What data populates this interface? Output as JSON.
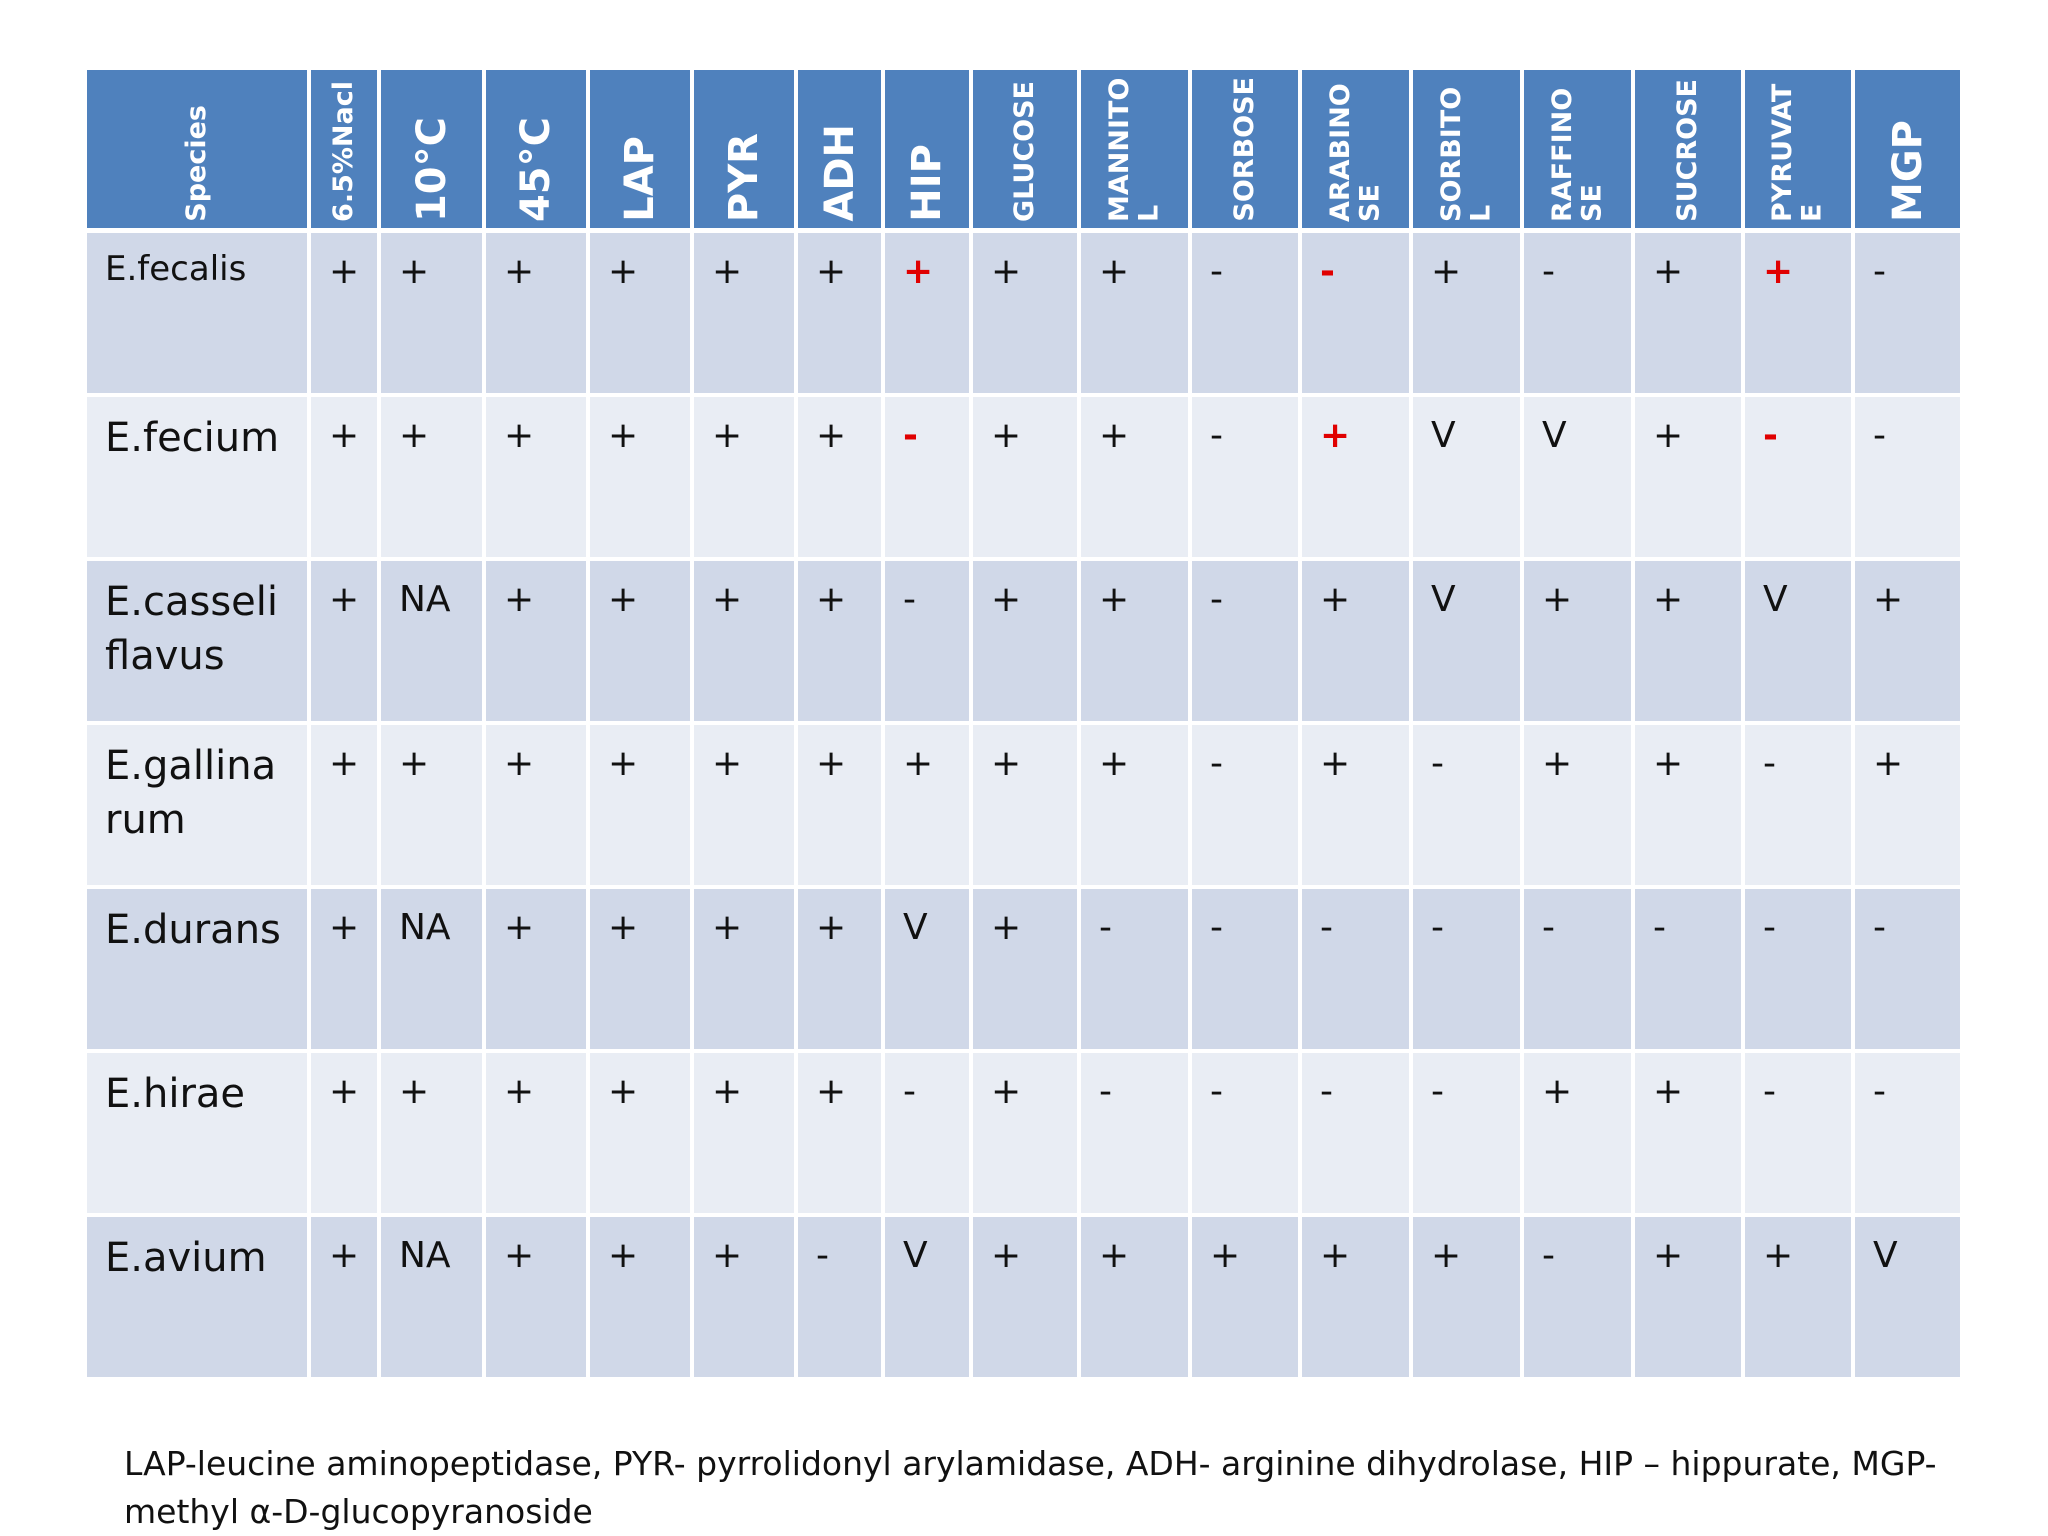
{
  "table": {
    "header": [
      "Species",
      "6.5%Nacl",
      "10°C",
      "45°C",
      "LAP",
      "PYR",
      "ADH",
      "HIP",
      "GLUCOSE",
      "MANNITOL",
      "SORBOSE",
      "ARABINOSE",
      "SORBITOL",
      "RAFFINOSE",
      "SUCROSE",
      "PYRUVATE",
      "MGP"
    ],
    "rows": [
      {
        "species": "E.fecalis",
        "cells": [
          {
            "text": "+"
          },
          {
            "text": "+"
          },
          {
            "text": "+"
          },
          {
            "text": "+"
          },
          {
            "text": "+"
          },
          {
            "text": "+"
          },
          {
            "text": "+",
            "color": "#e00000"
          },
          {
            "text": "+"
          },
          {
            "text": "+"
          },
          {
            "text": "-"
          },
          {
            "text": "-",
            "color": "#e00000"
          },
          {
            "text": "+"
          },
          {
            "text": "-"
          },
          {
            "text": "+"
          },
          {
            "text": "+",
            "color": "#e00000"
          },
          {
            "text": "-"
          }
        ]
      },
      {
        "species": "E.fecium",
        "cells": [
          {
            "text": "+"
          },
          {
            "text": "+"
          },
          {
            "text": "+"
          },
          {
            "text": "+"
          },
          {
            "text": "+"
          },
          {
            "text": "+"
          },
          {
            "text": "-",
            "color": "#e00000"
          },
          {
            "text": "+"
          },
          {
            "text": "+"
          },
          {
            "text": "-"
          },
          {
            "text": "+",
            "color": "#e00000"
          },
          {
            "text": "V"
          },
          {
            "text": "V"
          },
          {
            "text": "+"
          },
          {
            "text": "-",
            "color": "#e00000"
          },
          {
            "text": "-"
          }
        ]
      },
      {
        "species": "E.casseliflavus",
        "cells": [
          {
            "text": "+"
          },
          {
            "text": "NA"
          },
          {
            "text": "+"
          },
          {
            "text": "+"
          },
          {
            "text": "+"
          },
          {
            "text": "+"
          },
          {
            "text": "-"
          },
          {
            "text": "+"
          },
          {
            "text": "+"
          },
          {
            "text": "-"
          },
          {
            "text": "+"
          },
          {
            "text": "V"
          },
          {
            "text": "+"
          },
          {
            "text": "+"
          },
          {
            "text": "V"
          },
          {
            "text": "+"
          }
        ]
      },
      {
        "species": "E.gallinarum",
        "cells": [
          {
            "text": "+"
          },
          {
            "text": "+"
          },
          {
            "text": "+"
          },
          {
            "text": "+"
          },
          {
            "text": "+"
          },
          {
            "text": "+"
          },
          {
            "text": "+"
          },
          {
            "text": "+"
          },
          {
            "text": "+"
          },
          {
            "text": "-"
          },
          {
            "text": "+"
          },
          {
            "text": "-"
          },
          {
            "text": "+"
          },
          {
            "text": "+"
          },
          {
            "text": "-"
          },
          {
            "text": "+"
          }
        ]
      },
      {
        "species": "E.durans",
        "cells": [
          {
            "text": "+"
          },
          {
            "text": "NA"
          },
          {
            "text": "+"
          },
          {
            "text": "+"
          },
          {
            "text": "+"
          },
          {
            "text": "+"
          },
          {
            "text": "V"
          },
          {
            "text": "+"
          },
          {
            "text": "-"
          },
          {
            "text": "-"
          },
          {
            "text": "-"
          },
          {
            "text": "-"
          },
          {
            "text": "-"
          },
          {
            "text": "-"
          },
          {
            "text": "-"
          },
          {
            "text": "-"
          }
        ]
      },
      {
        "species": "E.hirae",
        "cells": [
          {
            "text": "+"
          },
          {
            "text": "+"
          },
          {
            "text": "+"
          },
          {
            "text": "+"
          },
          {
            "text": "+"
          },
          {
            "text": "+"
          },
          {
            "text": "-"
          },
          {
            "text": "+"
          },
          {
            "text": "-"
          },
          {
            "text": "-"
          },
          {
            "text": "-"
          },
          {
            "text": "-"
          },
          {
            "text": "+"
          },
          {
            "text": "+"
          },
          {
            "text": "-"
          },
          {
            "text": "-"
          }
        ]
      },
      {
        "species": "E.avium",
        "cells": [
          {
            "text": "+"
          },
          {
            "text": "NA"
          },
          {
            "text": "+"
          },
          {
            "text": "+"
          },
          {
            "text": "+"
          },
          {
            "text": "-"
          },
          {
            "text": "V"
          },
          {
            "text": "+"
          },
          {
            "text": "+"
          },
          {
            "text": "+"
          },
          {
            "text": "+"
          },
          {
            "text": "+"
          },
          {
            "text": "-"
          },
          {
            "text": "+"
          },
          {
            "text": "+"
          },
          {
            "text": "V"
          }
        ]
      }
    ]
  },
  "footnote": "LAP-leucine aminopeptidase, PYR- pyrrolidonyl arylamidase, ADH- arginine dihydrolase, HIP – hippurate, MGP- methyl α-D-glucopyranoside"
}
